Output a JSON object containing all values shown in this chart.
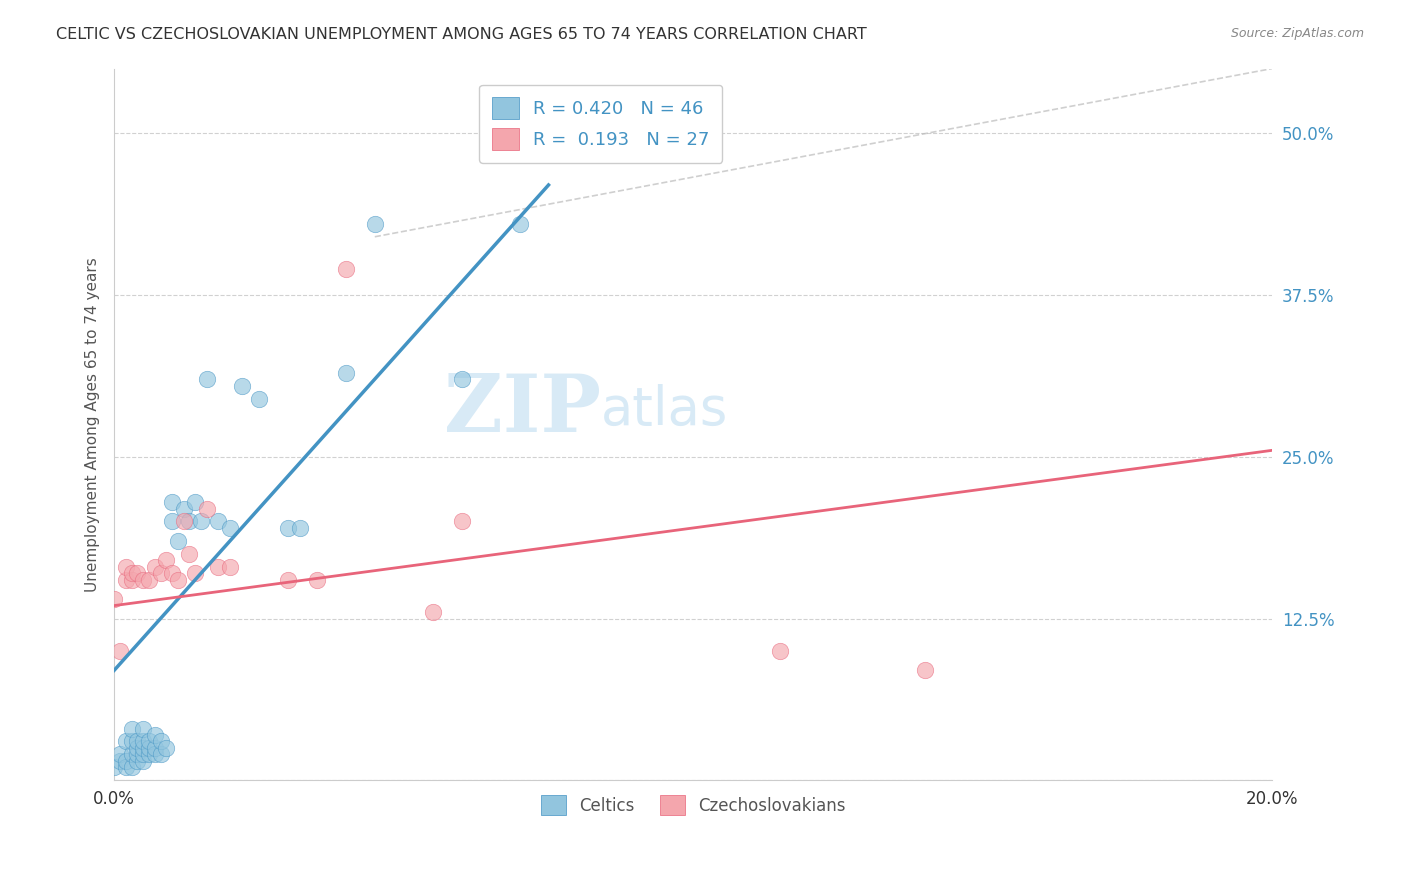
{
  "title": "CELTIC VS CZECHOSLOVAKIAN UNEMPLOYMENT AMONG AGES 65 TO 74 YEARS CORRELATION CHART",
  "source": "Source: ZipAtlas.com",
  "ylabel": "Unemployment Among Ages 65 to 74 years",
  "xlim": [
    0.0,
    0.2
  ],
  "ylim": [
    0.0,
    0.55
  ],
  "xticks": [
    0.0,
    0.025,
    0.05,
    0.075,
    0.1,
    0.125,
    0.15,
    0.175,
    0.2
  ],
  "yticks_right": [
    0.0,
    0.125,
    0.25,
    0.375,
    0.5
  ],
  "yticklabels_right": [
    "",
    "12.5%",
    "25.0%",
    "37.5%",
    "50.0%"
  ],
  "celtic_R": 0.42,
  "celtic_N": 46,
  "czech_R": 0.193,
  "czech_N": 27,
  "celtic_color": "#92c5de",
  "czech_color": "#f4a6ad",
  "celtic_line_color": "#4393c3",
  "czech_line_color": "#e8647a",
  "diagonal_color": "#bbbbbb",
  "watermark_zip": "ZIP",
  "watermark_atlas": "atlas",
  "legend_labels": [
    "Celtics",
    "Czechoslovakians"
  ],
  "celtic_scatter_x": [
    0.0,
    0.001,
    0.001,
    0.002,
    0.002,
    0.002,
    0.003,
    0.003,
    0.003,
    0.003,
    0.004,
    0.004,
    0.004,
    0.004,
    0.005,
    0.005,
    0.005,
    0.005,
    0.005,
    0.006,
    0.006,
    0.006,
    0.007,
    0.007,
    0.007,
    0.008,
    0.008,
    0.009,
    0.01,
    0.01,
    0.011,
    0.012,
    0.013,
    0.014,
    0.015,
    0.016,
    0.018,
    0.02,
    0.022,
    0.025,
    0.03,
    0.032,
    0.04,
    0.045,
    0.06,
    0.07
  ],
  "celtic_scatter_y": [
    0.01,
    0.015,
    0.02,
    0.01,
    0.015,
    0.03,
    0.01,
    0.02,
    0.03,
    0.04,
    0.015,
    0.02,
    0.025,
    0.03,
    0.015,
    0.02,
    0.025,
    0.03,
    0.04,
    0.02,
    0.025,
    0.03,
    0.02,
    0.025,
    0.035,
    0.02,
    0.03,
    0.025,
    0.2,
    0.215,
    0.185,
    0.21,
    0.2,
    0.215,
    0.2,
    0.31,
    0.2,
    0.195,
    0.305,
    0.295,
    0.195,
    0.195,
    0.315,
    0.43,
    0.31,
    0.43
  ],
  "czech_scatter_x": [
    0.0,
    0.001,
    0.002,
    0.002,
    0.003,
    0.003,
    0.004,
    0.005,
    0.006,
    0.007,
    0.008,
    0.009,
    0.01,
    0.011,
    0.012,
    0.013,
    0.014,
    0.016,
    0.018,
    0.02,
    0.03,
    0.035,
    0.04,
    0.055,
    0.06,
    0.115,
    0.14
  ],
  "czech_scatter_y": [
    0.14,
    0.1,
    0.155,
    0.165,
    0.155,
    0.16,
    0.16,
    0.155,
    0.155,
    0.165,
    0.16,
    0.17,
    0.16,
    0.155,
    0.2,
    0.175,
    0.16,
    0.21,
    0.165,
    0.165,
    0.155,
    0.155,
    0.395,
    0.13,
    0.2,
    0.1,
    0.085
  ],
  "celtic_line_x": [
    0.0,
    0.075
  ],
  "celtic_line_y": [
    0.085,
    0.46
  ],
  "czech_line_x": [
    0.0,
    0.2
  ],
  "czech_line_y": [
    0.135,
    0.255
  ],
  "diag_line_x": [
    0.045,
    0.2
  ],
  "diag_line_y": [
    0.42,
    0.55
  ],
  "background_color": "#ffffff",
  "grid_color": "#cccccc"
}
